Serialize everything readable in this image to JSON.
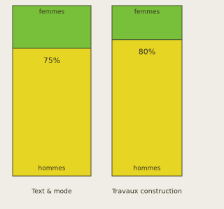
{
  "chart_data": {
    "type": "bar",
    "stacked": true,
    "categories": [
      "Text & mode",
      "Travaux construction"
    ],
    "ylim": [
      0,
      100
    ],
    "series": [
      {
        "name": "hommes",
        "color": "#e6d523",
        "values": [
          75,
          80
        ],
        "value_labels": [
          "75%",
          "80%"
        ]
      },
      {
        "name": "femmes",
        "color": "#78c03a",
        "values": [
          25,
          20
        ]
      }
    ]
  }
}
